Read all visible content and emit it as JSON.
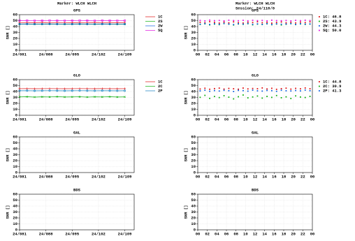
{
  "header": {
    "left_title": "Marker: WLCH WLCH",
    "right_title": "Marker: WLCH WLCH",
    "right_subtitle": "Session: 24/110/0"
  },
  "chart_data": [
    {
      "type": "line",
      "title": "GPS",
      "ylabel": "SNR []",
      "grid": true,
      "xlim": [
        81,
        111.5
      ],
      "xticks": [
        {
          "value": 81,
          "label": "24/081"
        },
        {
          "value": 88,
          "label": "24/088"
        },
        {
          "value": 95,
          "label": "24/095"
        },
        {
          "value": 102,
          "label": "24/102"
        },
        {
          "value": 109,
          "label": "24/109"
        }
      ],
      "ylim": [
        0,
        60
      ],
      "yticks": [
        0,
        10,
        20,
        30,
        40,
        50,
        60
      ],
      "x": [
        81,
        83,
        85,
        87,
        89,
        91,
        93,
        95,
        97,
        99,
        101,
        103,
        105,
        107,
        109
      ],
      "series": [
        {
          "name": "1C",
          "color": "#e01010",
          "values": [
            46.7,
            46.8,
            46.6,
            46.9,
            46.7,
            46.8,
            46.7,
            46.6,
            46.8,
            46.7,
            46.9,
            46.7,
            46.8,
            46.6,
            46.8
          ]
        },
        {
          "name": "2S",
          "color": "#10b010",
          "values": [
            43.9,
            44.0,
            43.8,
            43.9,
            44.0,
            43.9,
            43.8,
            43.9,
            44.0,
            43.9,
            43.8,
            44.0,
            43.9,
            43.8,
            43.9
          ]
        },
        {
          "name": "2W",
          "color": "#1060e0",
          "values": [
            44.3,
            44.4,
            44.2,
            44.3,
            44.4,
            44.3,
            44.2,
            44.3,
            44.4,
            44.3,
            44.2,
            44.4,
            44.3,
            44.2,
            44.3
          ]
        },
        {
          "name": "5Q",
          "color": "#e010e0",
          "values": [
            50.0,
            50.1,
            49.9,
            50.0,
            50.1,
            50.0,
            49.9,
            50.0,
            50.1,
            50.0,
            49.9,
            50.1,
            50.0,
            49.9,
            50.0
          ]
        }
      ]
    },
    {
      "type": "line",
      "title": "GLO",
      "ylabel": "SNR []",
      "grid": true,
      "xlim": [
        81,
        111.5
      ],
      "xticks": [
        {
          "value": 81,
          "label": "24/081"
        },
        {
          "value": 88,
          "label": "24/088"
        },
        {
          "value": 95,
          "label": "24/095"
        },
        {
          "value": 102,
          "label": "24/102"
        },
        {
          "value": 109,
          "label": "24/109"
        }
      ],
      "ylim": [
        0,
        60
      ],
      "yticks": [
        0,
        10,
        20,
        30,
        40,
        50,
        60
      ],
      "x": [
        81,
        83,
        85,
        87,
        89,
        91,
        93,
        95,
        97,
        99,
        101,
        103,
        105,
        107,
        109
      ],
      "series": [
        {
          "name": "1C",
          "color": "#e01010",
          "values": [
            44.8,
            44.9,
            44.7,
            44.8,
            44.9,
            44.8,
            44.7,
            44.8,
            44.9,
            44.8,
            44.7,
            44.9,
            44.8,
            44.7,
            44.8
          ]
        },
        {
          "name": "2C",
          "color": "#10b010",
          "values": [
            30.9,
            31.2,
            30.6,
            31.0,
            30.8,
            31.3,
            30.7,
            30.9,
            31.1,
            30.6,
            31.0,
            30.8,
            31.2,
            30.7,
            30.9
          ]
        },
        {
          "name": "2P",
          "color": "#1080c0",
          "values": [
            41.3,
            41.4,
            41.2,
            41.3,
            41.4,
            41.3,
            41.2,
            41.3,
            41.4,
            41.3,
            41.2,
            41.4,
            41.3,
            41.2,
            41.3
          ]
        }
      ]
    },
    {
      "type": "line",
      "title": "GAL",
      "ylabel": "SNR []",
      "grid": true,
      "xlim": [
        81,
        111.5
      ],
      "xticks": [
        {
          "value": 81,
          "label": "24/081"
        },
        {
          "value": 88,
          "label": "24/088"
        },
        {
          "value": 95,
          "label": "24/095"
        },
        {
          "value": 102,
          "label": "24/102"
        },
        {
          "value": 109,
          "label": "24/109"
        }
      ],
      "ylim": [
        0,
        60
      ],
      "yticks": [
        0,
        10,
        20,
        30,
        40,
        50,
        60
      ],
      "series": []
    },
    {
      "type": "line",
      "title": "BDS",
      "ylabel": "SNR []",
      "grid": true,
      "xlim": [
        81,
        111.5
      ],
      "xticks": [
        {
          "value": 81,
          "label": "24/081"
        },
        {
          "value": 88,
          "label": "24/088"
        },
        {
          "value": 95,
          "label": "24/095"
        },
        {
          "value": 102,
          "label": "24/102"
        },
        {
          "value": 109,
          "label": "24/109"
        }
      ],
      "ylim": [
        0,
        60
      ],
      "yticks": [
        0,
        10,
        20,
        30,
        40,
        50,
        60
      ],
      "series": []
    },
    {
      "type": "scatter",
      "title": "GPS",
      "ylabel": "SNR []",
      "grid": true,
      "xlim": [
        0,
        24
      ],
      "xticks": [
        {
          "value": 0,
          "label": "00"
        },
        {
          "value": 2,
          "label": "02"
        },
        {
          "value": 4,
          "label": "04"
        },
        {
          "value": 6,
          "label": "06"
        },
        {
          "value": 8,
          "label": "08"
        },
        10,
        12,
        14,
        16,
        18,
        20,
        22,
        {
          "value": 24,
          "label": "00"
        }
      ],
      "ylim": [
        0,
        60
      ],
      "yticks": [
        0,
        10,
        20,
        30,
        40,
        50,
        60
      ],
      "x": [
        0.5,
        1.5,
        2.5,
        3.5,
        4.5,
        5.5,
        6.5,
        7.5,
        8.5,
        9.5,
        10.5,
        11.5,
        12.5,
        13.5,
        14.5,
        15.5,
        16.5,
        17.5,
        18.5,
        19.5,
        20.5,
        21.5,
        22.5,
        23.5
      ],
      "series": [
        {
          "name": "1C: 46.8",
          "color": "#e01010",
          "values": [
            47.2,
            46.5,
            48.1,
            46.9,
            45.8,
            47.5,
            46.2,
            47.8,
            46.6,
            45.9,
            47.3,
            46.8,
            48.0,
            46.4,
            47.1,
            45.7,
            46.9,
            47.6,
            46.3,
            47.0,
            46.1,
            47.4,
            46.7,
            47.9
          ]
        },
        {
          "name": "2S: 43.9",
          "color": "#10b010",
          "values": [
            43.5,
            44.6,
            42.8,
            44.1,
            43.2,
            45.0,
            43.9,
            42.6,
            44.3,
            43.7,
            44.8,
            42.9,
            44.0,
            43.4,
            44.5,
            43.1,
            44.2,
            42.7,
            43.8,
            44.9,
            43.3,
            44.4,
            43.6,
            44.1
          ]
        },
        {
          "name": "2W: 44.3",
          "color": "#1060e0",
          "values": [
            44.0,
            45.1,
            43.6,
            44.8,
            43.9,
            45.3,
            44.2,
            43.4,
            44.7,
            44.1,
            45.2,
            43.8,
            44.5,
            43.7,
            44.9,
            43.5,
            44.6,
            43.9,
            44.3,
            45.0,
            43.6,
            44.8,
            44.1,
            44.4
          ]
        },
        {
          "name": "5Q: 50.0",
          "color": "#e010e0",
          "values": [
            50.3,
            49.6,
            50.8,
            49.9,
            50.2,
            49.5,
            50.6,
            50.1,
            49.8,
            50.4,
            49.7,
            50.5,
            49.9,
            50.3,
            49.6,
            50.7,
            50.0,
            49.8,
            50.2,
            49.5,
            50.4,
            49.9,
            50.6,
            50.1
          ]
        }
      ]
    },
    {
      "type": "scatter",
      "title": "GLO",
      "ylabel": "SNR []",
      "grid": true,
      "xlim": [
        0,
        24
      ],
      "xticks": [
        {
          "value": 0,
          "label": "00"
        },
        {
          "value": 2,
          "label": "02"
        },
        {
          "value": 4,
          "label": "04"
        },
        {
          "value": 6,
          "label": "06"
        },
        {
          "value": 8,
          "label": "08"
        },
        10,
        12,
        14,
        16,
        18,
        20,
        22,
        {
          "value": 24,
          "label": "00"
        }
      ],
      "ylim": [
        0,
        60
      ],
      "yticks": [
        0,
        10,
        20,
        30,
        40,
        50,
        60
      ],
      "x": [
        0.5,
        1.5,
        2.5,
        3.5,
        4.5,
        5.5,
        6.5,
        7.5,
        8.5,
        9.5,
        10.5,
        11.5,
        12.5,
        13.5,
        14.5,
        15.5,
        16.5,
        17.5,
        18.5,
        19.5,
        20.5,
        21.5,
        22.5,
        23.5
      ],
      "series": [
        {
          "name": "1C: 44.8",
          "color": "#e01010",
          "values": [
            44.2,
            45.5,
            43.8,
            44.9,
            45.7,
            44.1,
            45.2,
            44.6,
            43.9,
            45.8,
            44.4,
            45.1,
            44.7,
            46.0,
            44.3,
            45.4,
            43.7,
            44.8,
            45.6,
            44.0,
            45.3,
            44.5,
            45.9,
            44.6
          ]
        },
        {
          "name": "2C: 30.9",
          "color": "#10b010",
          "values": [
            30.2,
            33.5,
            28.4,
            31.6,
            29.8,
            32.9,
            30.5,
            27.6,
            31.2,
            34.1,
            29.3,
            30.8,
            32.4,
            28.9,
            31.7,
            30.1,
            33.2,
            29.5,
            31.0,
            28.2,
            32.6,
            30.7,
            29.9,
            31.8
          ]
        },
        {
          "name": "2P: 41.3",
          "color": "#1060e0",
          "values": [
            41.0,
            42.2,
            40.4,
            41.6,
            40.8,
            42.0,
            41.3,
            40.1,
            41.9,
            41.5,
            40.6,
            42.3,
            41.1,
            40.7,
            41.8,
            41.4,
            40.3,
            42.1,
            41.2,
            40.9,
            41.7,
            41.0,
            42.4,
            41.3
          ]
        }
      ]
    },
    {
      "type": "scatter",
      "title": "GAL",
      "ylabel": "SNR []",
      "grid": true,
      "xlim": [
        0,
        24
      ],
      "xticks": [
        {
          "value": 0,
          "label": "00"
        },
        {
          "value": 2,
          "label": "02"
        },
        {
          "value": 4,
          "label": "04"
        },
        {
          "value": 6,
          "label": "06"
        },
        {
          "value": 8,
          "label": "08"
        },
        10,
        12,
        14,
        16,
        18,
        20,
        22,
        {
          "value": 24,
          "label": "00"
        }
      ],
      "ylim": [
        0,
        60
      ],
      "yticks": [
        0,
        10,
        20,
        30,
        40,
        50,
        60
      ],
      "series": []
    },
    {
      "type": "scatter",
      "title": "BDS",
      "ylabel": "SNR []",
      "grid": true,
      "xlim": [
        0,
        24
      ],
      "xticks": [
        {
          "value": 0,
          "label": "00"
        },
        {
          "value": 2,
          "label": "02"
        },
        {
          "value": 4,
          "label": "04"
        },
        {
          "value": 6,
          "label": "06"
        },
        {
          "value": 8,
          "label": "08"
        },
        10,
        12,
        14,
        16,
        18,
        20,
        22,
        {
          "value": 24,
          "label": "00"
        }
      ],
      "ylim": [
        0,
        60
      ],
      "yticks": [
        0,
        10,
        20,
        30,
        40,
        50,
        60
      ],
      "series": []
    }
  ]
}
